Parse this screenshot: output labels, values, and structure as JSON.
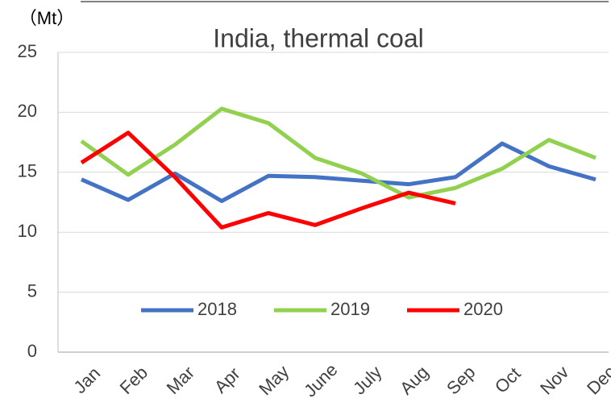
{
  "chart_data": {
    "type": "line",
    "title": "India, thermal coal",
    "y_label": "（Mt）",
    "categories": [
      "Jan",
      "Feb",
      "Mar",
      "Apr",
      "May",
      "June",
      "July",
      "Aug",
      "Sep",
      "Oct",
      "Nov",
      "Dec"
    ],
    "series": [
      {
        "name": "2018",
        "color": "#4472c4",
        "values": [
          14.4,
          12.7,
          14.9,
          12.6,
          14.7,
          14.6,
          14.3,
          14.0,
          14.6,
          17.4,
          15.5,
          14.4
        ]
      },
      {
        "name": "2019",
        "color": "#92d050",
        "values": [
          17.6,
          14.8,
          17.3,
          20.3,
          19.1,
          16.2,
          14.9,
          12.9,
          13.7,
          15.3,
          17.7,
          16.2
        ]
      },
      {
        "name": "2020",
        "color": "#ff0000",
        "values": [
          15.8,
          18.3,
          14.6,
          10.4,
          11.6,
          10.6,
          12.0,
          13.3,
          12.4,
          null,
          null,
          null
        ]
      }
    ],
    "ylim": [
      0,
      25
    ],
    "yticks": [
      0,
      5,
      10,
      15,
      20,
      25
    ],
    "grid": true,
    "legend": "bottom"
  }
}
